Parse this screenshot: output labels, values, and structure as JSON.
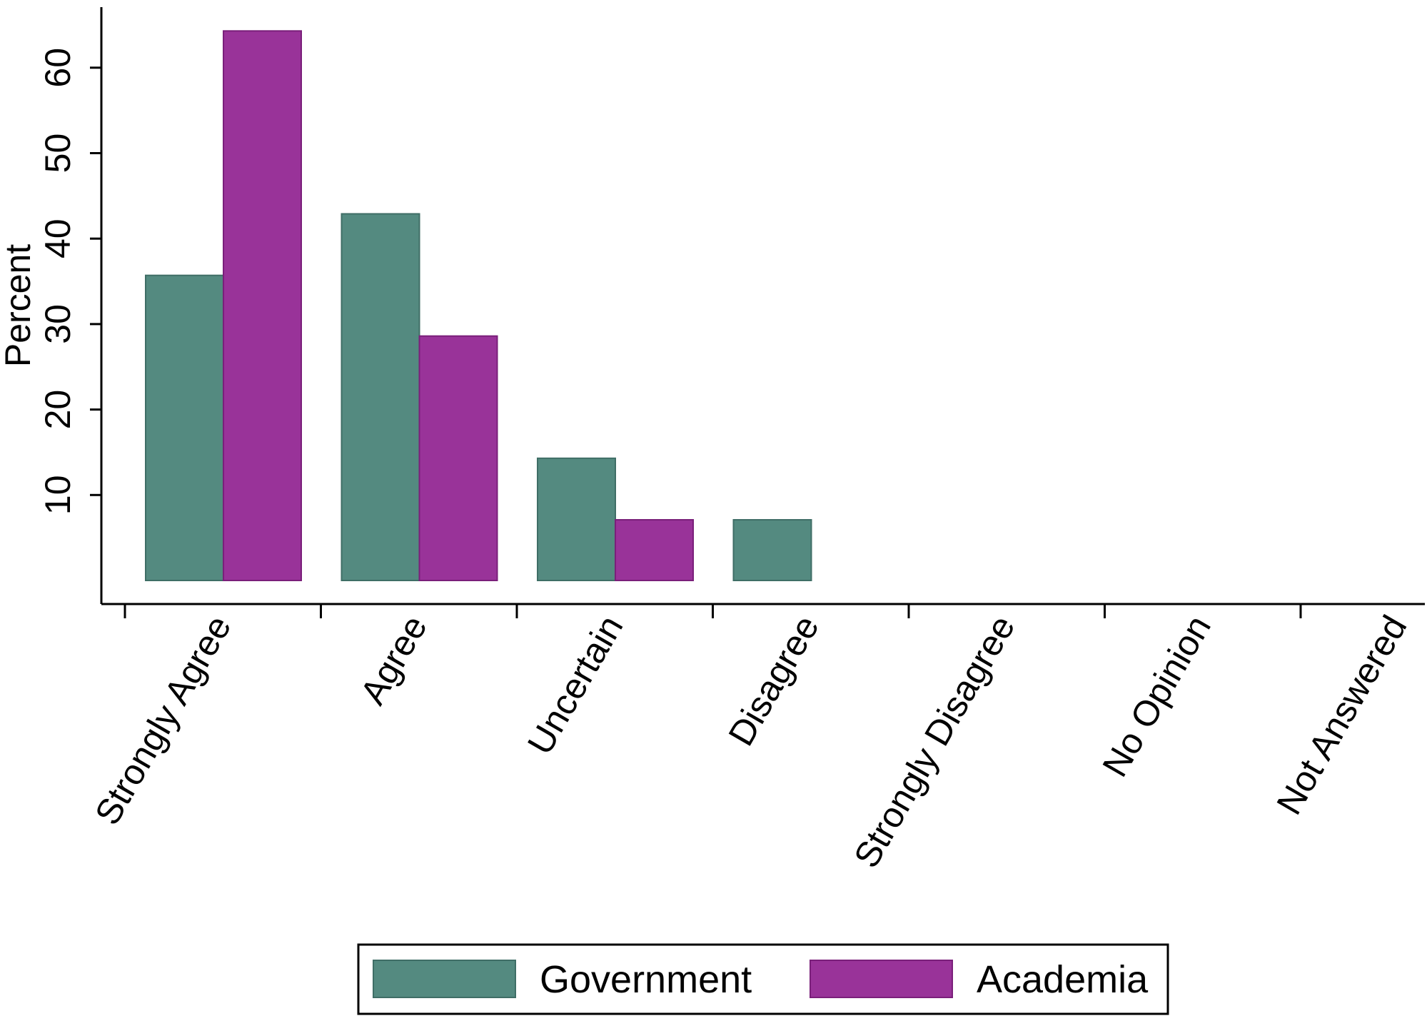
{
  "chart_data": {
    "type": "bar",
    "title": "",
    "xlabel": "",
    "ylabel": "Percent",
    "ylim": [
      0,
      65
    ],
    "yticks": [
      10,
      20,
      30,
      40,
      50,
      60
    ],
    "grid": false,
    "legend_position": "bottom",
    "categories": [
      "Strongly Agree",
      "Agree",
      "Uncertain",
      "Disagree",
      "Strongly Disagree",
      "No Opinion",
      "Not Answered"
    ],
    "series": [
      {
        "name": "Government",
        "color": "#548A80",
        "values": [
          35.7,
          42.9,
          14.3,
          7.1,
          0,
          0,
          0
        ]
      },
      {
        "name": "Academia",
        "color": "#993399",
        "values": [
          64.3,
          28.6,
          7.1,
          0,
          0,
          0,
          0
        ]
      }
    ]
  }
}
